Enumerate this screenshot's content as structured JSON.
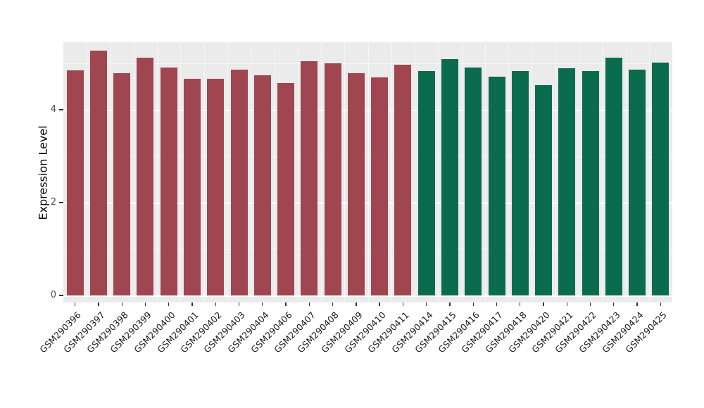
{
  "chart_data": {
    "type": "bar",
    "title": "",
    "xlabel": "",
    "ylabel": "Expression Level",
    "ylim": [
      0,
      5.5
    ],
    "yticks": [
      0,
      2,
      4
    ],
    "ytick_labels": [
      "0",
      "2",
      "4"
    ],
    "minor_yticks": [
      1,
      3,
      5
    ],
    "grid": "white major and minor horizontal gridlines, faint vertical gridlines, on light gray panel",
    "legend": "none",
    "categories": [
      "GSM290396",
      "GSM290397",
      "GSM290398",
      "GSM290399",
      "GSM290400",
      "GSM290401",
      "GSM290402",
      "GSM290403",
      "GSM290404",
      "GSM290406",
      "GSM290407",
      "GSM290408",
      "GSM290409",
      "GSM290410",
      "GSM290411",
      "GSM290414",
      "GSM290415",
      "GSM290416",
      "GSM290417",
      "GSM290418",
      "GSM290420",
      "GSM290421",
      "GSM290422",
      "GSM290423",
      "GSM290424",
      "GSM290425"
    ],
    "values": [
      4.85,
      5.27,
      4.79,
      5.12,
      4.91,
      4.67,
      4.67,
      4.86,
      4.74,
      4.58,
      5.05,
      5.0,
      4.79,
      4.7,
      4.97,
      4.83,
      5.09,
      4.91,
      4.71,
      4.83,
      4.53,
      4.89,
      4.83,
      5.12,
      4.86,
      5.02
    ],
    "bar_groups": [
      "group1",
      "group1",
      "group1",
      "group1",
      "group1",
      "group1",
      "group1",
      "group1",
      "group1",
      "group1",
      "group1",
      "group1",
      "group1",
      "group1",
      "group1",
      "group2",
      "group2",
      "group2",
      "group2",
      "group2",
      "group2",
      "group2",
      "group2",
      "group2",
      "group2",
      "group2"
    ],
    "style": {
      "panel_background": "#EBEBEB",
      "grid_major_color": "#FFFFFF",
      "grid_minor_color": "rgba(255,255,255,0.55)",
      "tick_color": "#333333",
      "x_tick_label_color": "#1a1a1a",
      "y_tick_label_color": "#4d4d4d",
      "group_colors": {
        "group1": "#A04651",
        "group2": "#0B6B4D"
      }
    }
  }
}
